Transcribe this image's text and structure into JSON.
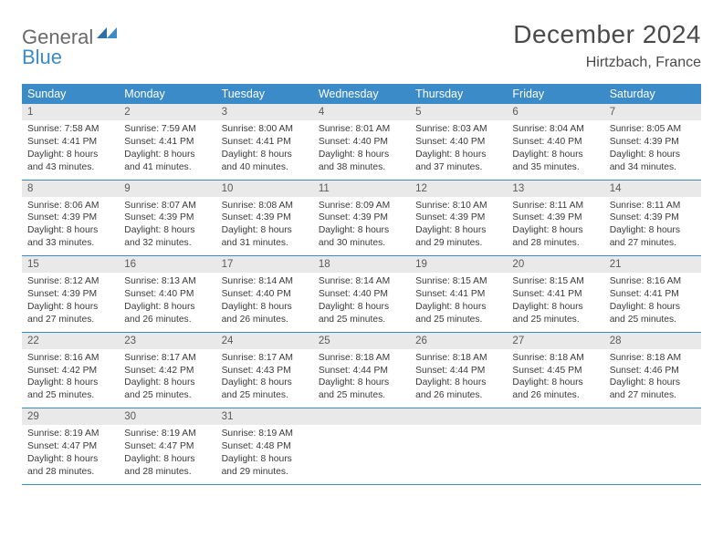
{
  "logo": {
    "word1": "General",
    "word2": "Blue"
  },
  "title": "December 2024",
  "location": "Hirtzbach, France",
  "colors": {
    "header_bg": "#3b8bc8",
    "header_text": "#ffffff",
    "daynum_bg": "#e9e9e9",
    "daynum_text": "#5a5a5a",
    "body_text": "#3a3a3a",
    "title_text": "#4a4a4a",
    "rule": "#3b8bc8"
  },
  "weekdays": [
    "Sunday",
    "Monday",
    "Tuesday",
    "Wednesday",
    "Thursday",
    "Friday",
    "Saturday"
  ],
  "weeks": [
    [
      {
        "n": "1",
        "sr": "7:58 AM",
        "ss": "4:41 PM",
        "dl": "8 hours and 43 minutes."
      },
      {
        "n": "2",
        "sr": "7:59 AM",
        "ss": "4:41 PM",
        "dl": "8 hours and 41 minutes."
      },
      {
        "n": "3",
        "sr": "8:00 AM",
        "ss": "4:41 PM",
        "dl": "8 hours and 40 minutes."
      },
      {
        "n": "4",
        "sr": "8:01 AM",
        "ss": "4:40 PM",
        "dl": "8 hours and 38 minutes."
      },
      {
        "n": "5",
        "sr": "8:03 AM",
        "ss": "4:40 PM",
        "dl": "8 hours and 37 minutes."
      },
      {
        "n": "6",
        "sr": "8:04 AM",
        "ss": "4:40 PM",
        "dl": "8 hours and 35 minutes."
      },
      {
        "n": "7",
        "sr": "8:05 AM",
        "ss": "4:39 PM",
        "dl": "8 hours and 34 minutes."
      }
    ],
    [
      {
        "n": "8",
        "sr": "8:06 AM",
        "ss": "4:39 PM",
        "dl": "8 hours and 33 minutes."
      },
      {
        "n": "9",
        "sr": "8:07 AM",
        "ss": "4:39 PM",
        "dl": "8 hours and 32 minutes."
      },
      {
        "n": "10",
        "sr": "8:08 AM",
        "ss": "4:39 PM",
        "dl": "8 hours and 31 minutes."
      },
      {
        "n": "11",
        "sr": "8:09 AM",
        "ss": "4:39 PM",
        "dl": "8 hours and 30 minutes."
      },
      {
        "n": "12",
        "sr": "8:10 AM",
        "ss": "4:39 PM",
        "dl": "8 hours and 29 minutes."
      },
      {
        "n": "13",
        "sr": "8:11 AM",
        "ss": "4:39 PM",
        "dl": "8 hours and 28 minutes."
      },
      {
        "n": "14",
        "sr": "8:11 AM",
        "ss": "4:39 PM",
        "dl": "8 hours and 27 minutes."
      }
    ],
    [
      {
        "n": "15",
        "sr": "8:12 AM",
        "ss": "4:39 PM",
        "dl": "8 hours and 27 minutes."
      },
      {
        "n": "16",
        "sr": "8:13 AM",
        "ss": "4:40 PM",
        "dl": "8 hours and 26 minutes."
      },
      {
        "n": "17",
        "sr": "8:14 AM",
        "ss": "4:40 PM",
        "dl": "8 hours and 26 minutes."
      },
      {
        "n": "18",
        "sr": "8:14 AM",
        "ss": "4:40 PM",
        "dl": "8 hours and 25 minutes."
      },
      {
        "n": "19",
        "sr": "8:15 AM",
        "ss": "4:41 PM",
        "dl": "8 hours and 25 minutes."
      },
      {
        "n": "20",
        "sr": "8:15 AM",
        "ss": "4:41 PM",
        "dl": "8 hours and 25 minutes."
      },
      {
        "n": "21",
        "sr": "8:16 AM",
        "ss": "4:41 PM",
        "dl": "8 hours and 25 minutes."
      }
    ],
    [
      {
        "n": "22",
        "sr": "8:16 AM",
        "ss": "4:42 PM",
        "dl": "8 hours and 25 minutes."
      },
      {
        "n": "23",
        "sr": "8:17 AM",
        "ss": "4:42 PM",
        "dl": "8 hours and 25 minutes."
      },
      {
        "n": "24",
        "sr": "8:17 AM",
        "ss": "4:43 PM",
        "dl": "8 hours and 25 minutes."
      },
      {
        "n": "25",
        "sr": "8:18 AM",
        "ss": "4:44 PM",
        "dl": "8 hours and 25 minutes."
      },
      {
        "n": "26",
        "sr": "8:18 AM",
        "ss": "4:44 PM",
        "dl": "8 hours and 26 minutes."
      },
      {
        "n": "27",
        "sr": "8:18 AM",
        "ss": "4:45 PM",
        "dl": "8 hours and 26 minutes."
      },
      {
        "n": "28",
        "sr": "8:18 AM",
        "ss": "4:46 PM",
        "dl": "8 hours and 27 minutes."
      }
    ],
    [
      {
        "n": "29",
        "sr": "8:19 AM",
        "ss": "4:47 PM",
        "dl": "8 hours and 28 minutes."
      },
      {
        "n": "30",
        "sr": "8:19 AM",
        "ss": "4:47 PM",
        "dl": "8 hours and 28 minutes."
      },
      {
        "n": "31",
        "sr": "8:19 AM",
        "ss": "4:48 PM",
        "dl": "8 hours and 29 minutes."
      },
      null,
      null,
      null,
      null
    ]
  ],
  "labels": {
    "sunrise": "Sunrise:",
    "sunset": "Sunset:",
    "daylight": "Daylight:"
  }
}
